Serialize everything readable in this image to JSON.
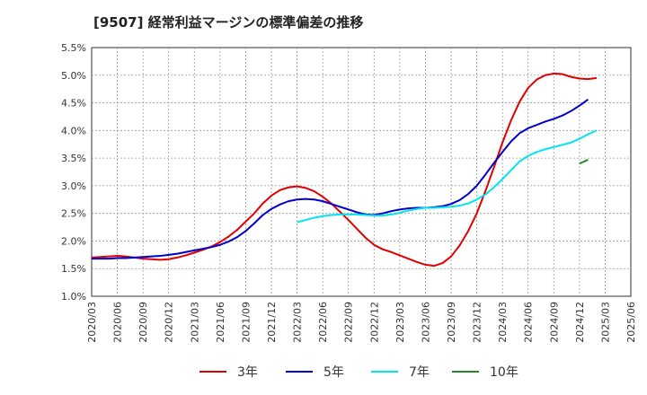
{
  "chart_data": {
    "type": "line",
    "title": "[9507]  経常利益マージンの標準偏差の推移",
    "xlabel": "",
    "ylabel": "",
    "ylim": [
      1.0,
      5.5
    ],
    "y_ticks": [
      "1.0%",
      "1.5%",
      "2.0%",
      "2.5%",
      "3.0%",
      "3.5%",
      "4.0%",
      "4.5%",
      "5.0%",
      "5.5%"
    ],
    "x_ticks": [
      "2020/03",
      "2020/06",
      "2020/09",
      "2020/12",
      "2021/03",
      "2021/06",
      "2021/09",
      "2021/12",
      "2022/03",
      "2022/06",
      "2022/09",
      "2022/12",
      "2023/03",
      "2023/06",
      "2023/09",
      "2023/12",
      "2024/03",
      "2024/06",
      "2024/09",
      "2024/12",
      "2025/03",
      "2025/06"
    ],
    "grid": true,
    "legend_position": "bottom",
    "x_start": "2020/03",
    "series": [
      {
        "name": "3年",
        "color": "#e00000",
        "start": "2020/03",
        "values": [
          1.7,
          1.71,
          1.72,
          1.73,
          1.72,
          1.7,
          1.68,
          1.67,
          1.66,
          1.67,
          1.7,
          1.74,
          1.79,
          1.84,
          1.9,
          1.98,
          2.08,
          2.2,
          2.35,
          2.5,
          2.68,
          2.82,
          2.92,
          2.97,
          2.99,
          2.96,
          2.9,
          2.8,
          2.68,
          2.53,
          2.38,
          2.22,
          2.06,
          1.93,
          1.85,
          1.8,
          1.74,
          1.68,
          1.62,
          1.57,
          1.55,
          1.6,
          1.72,
          1.92,
          2.18,
          2.5,
          2.9,
          3.33,
          3.78,
          4.18,
          4.52,
          4.77,
          4.92,
          5.0,
          5.03,
          5.02,
          4.97,
          4.94,
          4.93,
          4.95
        ]
      },
      {
        "name": "5年",
        "color": "#0000cc",
        "start": "2020/03",
        "values": [
          1.68,
          1.68,
          1.68,
          1.69,
          1.69,
          1.7,
          1.71,
          1.72,
          1.73,
          1.75,
          1.77,
          1.8,
          1.83,
          1.86,
          1.89,
          1.93,
          1.99,
          2.07,
          2.18,
          2.32,
          2.47,
          2.58,
          2.66,
          2.72,
          2.75,
          2.76,
          2.75,
          2.72,
          2.67,
          2.62,
          2.57,
          2.52,
          2.48,
          2.47,
          2.5,
          2.54,
          2.57,
          2.59,
          2.6,
          2.6,
          2.61,
          2.63,
          2.67,
          2.74,
          2.85,
          3.0,
          3.2,
          3.41,
          3.61,
          3.8,
          3.95,
          4.04,
          4.1,
          4.16,
          4.21,
          4.27,
          4.35,
          4.45,
          4.56
        ]
      },
      {
        "name": "7年",
        "color": "#00e5ee",
        "start": "2022/03",
        "values": [
          2.34,
          2.38,
          2.42,
          2.45,
          2.47,
          2.48,
          2.48,
          2.48,
          2.47,
          2.46,
          2.46,
          2.48,
          2.51,
          2.55,
          2.58,
          2.6,
          2.6,
          2.61,
          2.62,
          2.64,
          2.68,
          2.75,
          2.84,
          2.97,
          3.12,
          3.28,
          3.44,
          3.54,
          3.61,
          3.66,
          3.7,
          3.74,
          3.78,
          3.85,
          3.93,
          4.0
        ]
      },
      {
        "name": "10年",
        "color": "#228b22",
        "start": "2024/12",
        "values": [
          3.4,
          3.47
        ]
      }
    ]
  }
}
